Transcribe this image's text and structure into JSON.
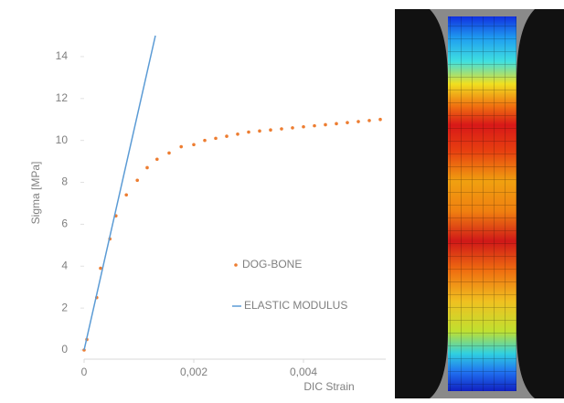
{
  "chart_data": {
    "type": "scatter",
    "xlabel": "DIC Strain",
    "ylabel": "Sigma [MPa]",
    "xlim": [
      0,
      0.0055
    ],
    "ylim": [
      0,
      15
    ],
    "xticks": [
      0,
      {
        "value": 0.002,
        "label": "0,002"
      },
      {
        "value": 0.004,
        "label": "0,004"
      }
    ],
    "yticks": [
      0,
      2,
      4,
      6,
      8,
      10,
      12,
      14
    ],
    "legend": "center-right",
    "series": [
      {
        "name": "DOG-BONE",
        "type": "scatter",
        "color": "#ed7d31",
        "x": [
          0,
          5e-05,
          0.00023,
          0.0003,
          0.00047,
          0.00058,
          0.00077,
          0.00097,
          0.00115,
          0.00133,
          0.00155,
          0.00177,
          0.002,
          0.0022,
          0.0024,
          0.0026,
          0.0028,
          0.003,
          0.0032,
          0.0034,
          0.0036,
          0.0038,
          0.004,
          0.0042,
          0.0044,
          0.0046,
          0.0048,
          0.005,
          0.0052,
          0.0054
        ],
        "values": [
          0,
          0.5,
          2.5,
          3.9,
          5.3,
          6.4,
          7.4,
          8.1,
          8.7,
          9.1,
          9.4,
          9.7,
          9.8,
          10.0,
          10.1,
          10.2,
          10.3,
          10.4,
          10.45,
          10.5,
          10.55,
          10.6,
          10.65,
          10.7,
          10.75,
          10.8,
          10.85,
          10.9,
          10.95,
          11.0
        ]
      },
      {
        "name": "ELASTIC MODULUS",
        "type": "line",
        "color": "#5b9bd5",
        "x": [
          0,
          0.0013
        ],
        "values": [
          0,
          15
        ]
      }
    ]
  }
}
